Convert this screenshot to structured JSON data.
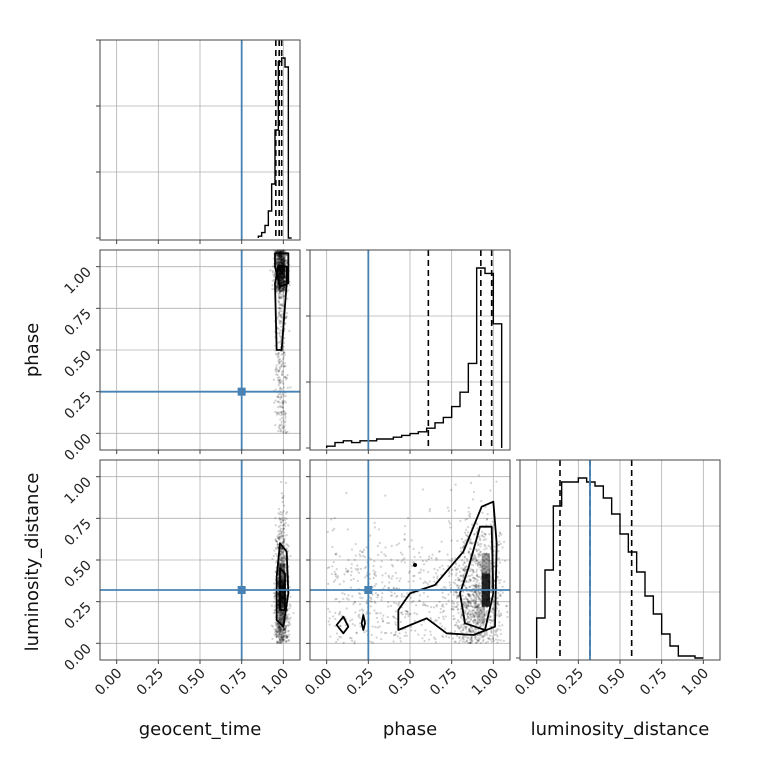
{
  "chart_data": {
    "type": "corner",
    "parameters": [
      "geocent_time",
      "phase",
      "luminosity_distance"
    ],
    "axis_range": [
      -0.1,
      1.1
    ],
    "ticks": [
      0.0,
      0.25,
      0.5,
      0.75,
      1.0
    ],
    "tick_labels": [
      "0.00",
      "0.25",
      "0.50",
      "0.75",
      "1.00"
    ],
    "grid": true,
    "truths": {
      "geocent_time": 0.75,
      "phase": 0.25,
      "luminosity_distance": 0.32
    },
    "truth_color": "#4682b4",
    "histograms": {
      "geocent_time": {
        "bin_edges": [
          0.85,
          0.87,
          0.89,
          0.91,
          0.93,
          0.95,
          0.97,
          0.99,
          1.01,
          1.03,
          1.05
        ],
        "values": [
          1,
          3,
          7,
          15,
          30,
          60,
          98,
          100,
          95,
          0
        ],
        "quantiles": [
          0.955,
          0.975,
          0.99
        ]
      },
      "phase": {
        "bin_edges": [
          0.0,
          0.05,
          0.1,
          0.15,
          0.2,
          0.25,
          0.3,
          0.35,
          0.4,
          0.45,
          0.5,
          0.55,
          0.6,
          0.65,
          0.7,
          0.75,
          0.8,
          0.85,
          0.9,
          0.95,
          1.0,
          1.05
        ],
        "values": [
          1,
          3,
          4,
          3,
          4,
          4,
          5,
          5,
          6,
          7,
          8,
          9,
          11,
          14,
          17,
          23,
          31,
          47,
          100,
          97,
          69
        ],
        "quantiles": [
          0.61,
          0.925,
          0.99
        ]
      },
      "luminosity_distance": {
        "bin_edges": [
          0.0,
          0.05,
          0.1,
          0.15,
          0.2,
          0.25,
          0.3,
          0.35,
          0.4,
          0.45,
          0.5,
          0.55,
          0.6,
          0.65,
          0.7,
          0.75,
          0.8,
          0.85,
          0.9,
          0.95,
          1.0
        ],
        "values": [
          20,
          44,
          76,
          88,
          88,
          90,
          88,
          86,
          80,
          72,
          62,
          53,
          43,
          31,
          22,
          12,
          6,
          1,
          1,
          0
        ],
        "quantiles": [
          0.14,
          0.32,
          0.57
        ]
      }
    },
    "contours": {
      "phase_vs_geocent_time": [
        [
          [
            0.97,
            1.0
          ],
          [
            0.95,
            0.9
          ],
          [
            0.96,
            0.5
          ],
          [
            0.99,
            0.5
          ],
          [
            1.02,
            0.9
          ],
          [
            1.02,
            1.0
          ]
        ],
        [
          [
            0.95,
            1.08
          ],
          [
            1.03,
            1.08
          ],
          [
            1.03,
            0.9
          ],
          [
            0.98,
            0.88
          ],
          [
            0.95,
            1.0
          ]
        ]
      ],
      "luminosity_distance_vs_geocent_time": [
        [
          [
            0.96,
            0.14
          ],
          [
            0.96,
            0.4
          ],
          [
            0.98,
            0.6
          ],
          [
            1.02,
            0.55
          ],
          [
            1.03,
            0.3
          ],
          [
            1.0,
            0.1
          ]
        ],
        [
          [
            0.98,
            0.2
          ],
          [
            0.98,
            0.45
          ],
          [
            1.01,
            0.42
          ],
          [
            1.01,
            0.2
          ]
        ]
      ],
      "luminosity_distance_vs_phase": [
        [
          [
            0.43,
            0.08
          ],
          [
            0.6,
            0.15
          ],
          [
            0.72,
            0.06
          ],
          [
            0.88,
            0.05
          ],
          [
            1.01,
            0.1
          ],
          [
            1.02,
            0.6
          ],
          [
            1.0,
            0.85
          ],
          [
            0.93,
            0.82
          ],
          [
            0.82,
            0.55
          ],
          [
            0.65,
            0.35
          ],
          [
            0.5,
            0.3
          ],
          [
            0.43,
            0.2
          ]
        ],
        [
          [
            0.83,
            0.12
          ],
          [
            0.95,
            0.08
          ],
          [
            1.0,
            0.3
          ],
          [
            0.99,
            0.7
          ],
          [
            0.92,
            0.7
          ],
          [
            0.85,
            0.45
          ],
          [
            0.8,
            0.3
          ]
        ],
        [
          [
            0.06,
            0.11
          ],
          [
            0.1,
            0.16
          ],
          [
            0.13,
            0.1
          ],
          [
            0.1,
            0.06
          ]
        ],
        [
          [
            0.21,
            0.12
          ],
          [
            0.22,
            0.17
          ],
          [
            0.23,
            0.12
          ],
          [
            0.22,
            0.08
          ]
        ]
      ]
    }
  }
}
